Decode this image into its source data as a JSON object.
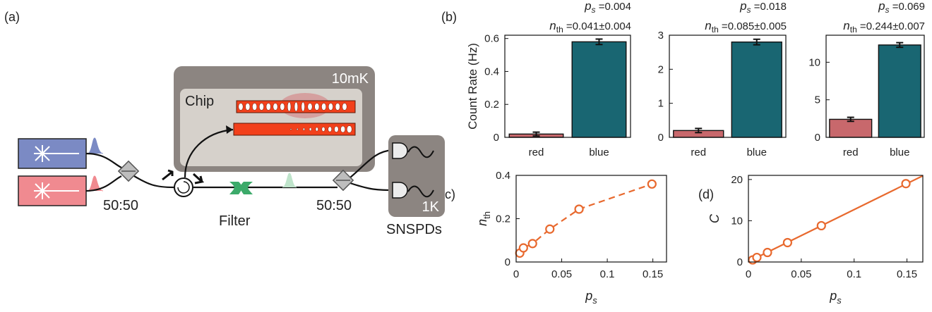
{
  "panels": {
    "a": "(a)",
    "b": "(b)",
    "c": "(c)",
    "d": "(d)"
  },
  "diagram": {
    "chip_label": "Chip",
    "fridge_label": "10mK",
    "splitter1_label": "50:50",
    "splitter2_label": "50:50",
    "filter_label": "Filter",
    "detector_temp": "1K",
    "detector_label": "SNSPDs",
    "colors": {
      "laser_blue": "#7b8ac4",
      "laser_red": "#f08a90",
      "fridge": "#8c8581",
      "chip": "#d6d1cb",
      "device": "#f2401b",
      "filter": "#3caa6a"
    }
  },
  "chart_data": [
    {
      "id": "b1",
      "type": "bar",
      "categories": [
        "red",
        "blue"
      ],
      "values": [
        0.02,
        0.58
      ],
      "errors": [
        0.003,
        0.008
      ],
      "colors": [
        "#c8686c",
        "#196672"
      ],
      "ylabel": "Count Rate (Hz)",
      "ylim": [
        0,
        0.62
      ],
      "yticks": [
        0,
        0.2,
        0.4,
        0.6
      ],
      "ytick_labels": [
        "0",
        "0.2",
        "0.4",
        "0.6"
      ],
      "ps_label": "p",
      "ps_sub": "s",
      "ps_value": "=0.004",
      "nth_label": "n",
      "nth_sub": "th",
      "nth_value": "=0.041±0.004"
    },
    {
      "id": "b2",
      "type": "bar",
      "categories": [
        "red",
        "blue"
      ],
      "values": [
        0.2,
        2.8
      ],
      "errors": [
        0.02,
        0.04
      ],
      "colors": [
        "#c8686c",
        "#196672"
      ],
      "ylabel": "",
      "ylim": [
        0,
        3.0
      ],
      "yticks": [
        0,
        1,
        2,
        3
      ],
      "ytick_labels": [
        "0",
        "1",
        "2",
        "3"
      ],
      "ps_label": "p",
      "ps_sub": "s",
      "ps_value": "=0.018",
      "nth_label": "n",
      "nth_sub": "th",
      "nth_value": "=0.085±0.005"
    },
    {
      "id": "b3",
      "type": "bar",
      "categories": [
        "red",
        "blue"
      ],
      "values": [
        2.4,
        12.3
      ],
      "errors": [
        0.08,
        0.12
      ],
      "colors": [
        "#c8686c",
        "#196672"
      ],
      "ylabel": "",
      "ylim": [
        0,
        13.6
      ],
      "yticks": [
        0,
        5,
        10
      ],
      "ytick_labels": [
        "0",
        "5",
        "10"
      ],
      "ps_label": "p",
      "ps_sub": "s",
      "ps_value": "=0.069",
      "nth_label": "n",
      "nth_sub": "th",
      "nth_value": "=0.244±0.007"
    },
    {
      "id": "c",
      "type": "line",
      "x": [
        0.004,
        0.008,
        0.018,
        0.037,
        0.069,
        0.149
      ],
      "y": [
        0.041,
        0.065,
        0.085,
        0.152,
        0.244,
        0.36
      ],
      "xlim": [
        0,
        0.165
      ],
      "ylim": [
        0,
        0.4
      ],
      "xticks": [
        0,
        0.05,
        0.1,
        0.15
      ],
      "xtick_labels": [
        "0",
        "0.05",
        "0.1",
        "0.15"
      ],
      "yticks": [
        0,
        0.2,
        0.4
      ],
      "ytick_labels": [
        "0",
        "0.2",
        "0.4"
      ],
      "xlabel": "p",
      "xlabel_sub": "s",
      "ylabel": "n",
      "ylabel_sub": "th",
      "color": "#e8692e",
      "line_style": "dashed"
    },
    {
      "id": "d",
      "type": "line",
      "x": [
        0.004,
        0.008,
        0.018,
        0.037,
        0.069,
        0.149
      ],
      "y": [
        0.5,
        1.1,
        2.3,
        4.7,
        8.8,
        19.0
      ],
      "fit": {
        "x": [
          0,
          0.165
        ],
        "y": [
          0.1,
          20.9
        ]
      },
      "xlim": [
        0,
        0.165
      ],
      "ylim": [
        0,
        21
      ],
      "xticks": [
        0,
        0.05,
        0.1,
        0.15
      ],
      "xtick_labels": [
        "0",
        "0.05",
        "0.1",
        "0.15"
      ],
      "yticks": [
        0,
        10,
        20
      ],
      "ytick_labels": [
        "0",
        "10",
        "20"
      ],
      "xlabel": "p",
      "xlabel_sub": "s",
      "ylabel": "C",
      "color": "#e8692e",
      "line_style": "solid"
    }
  ]
}
